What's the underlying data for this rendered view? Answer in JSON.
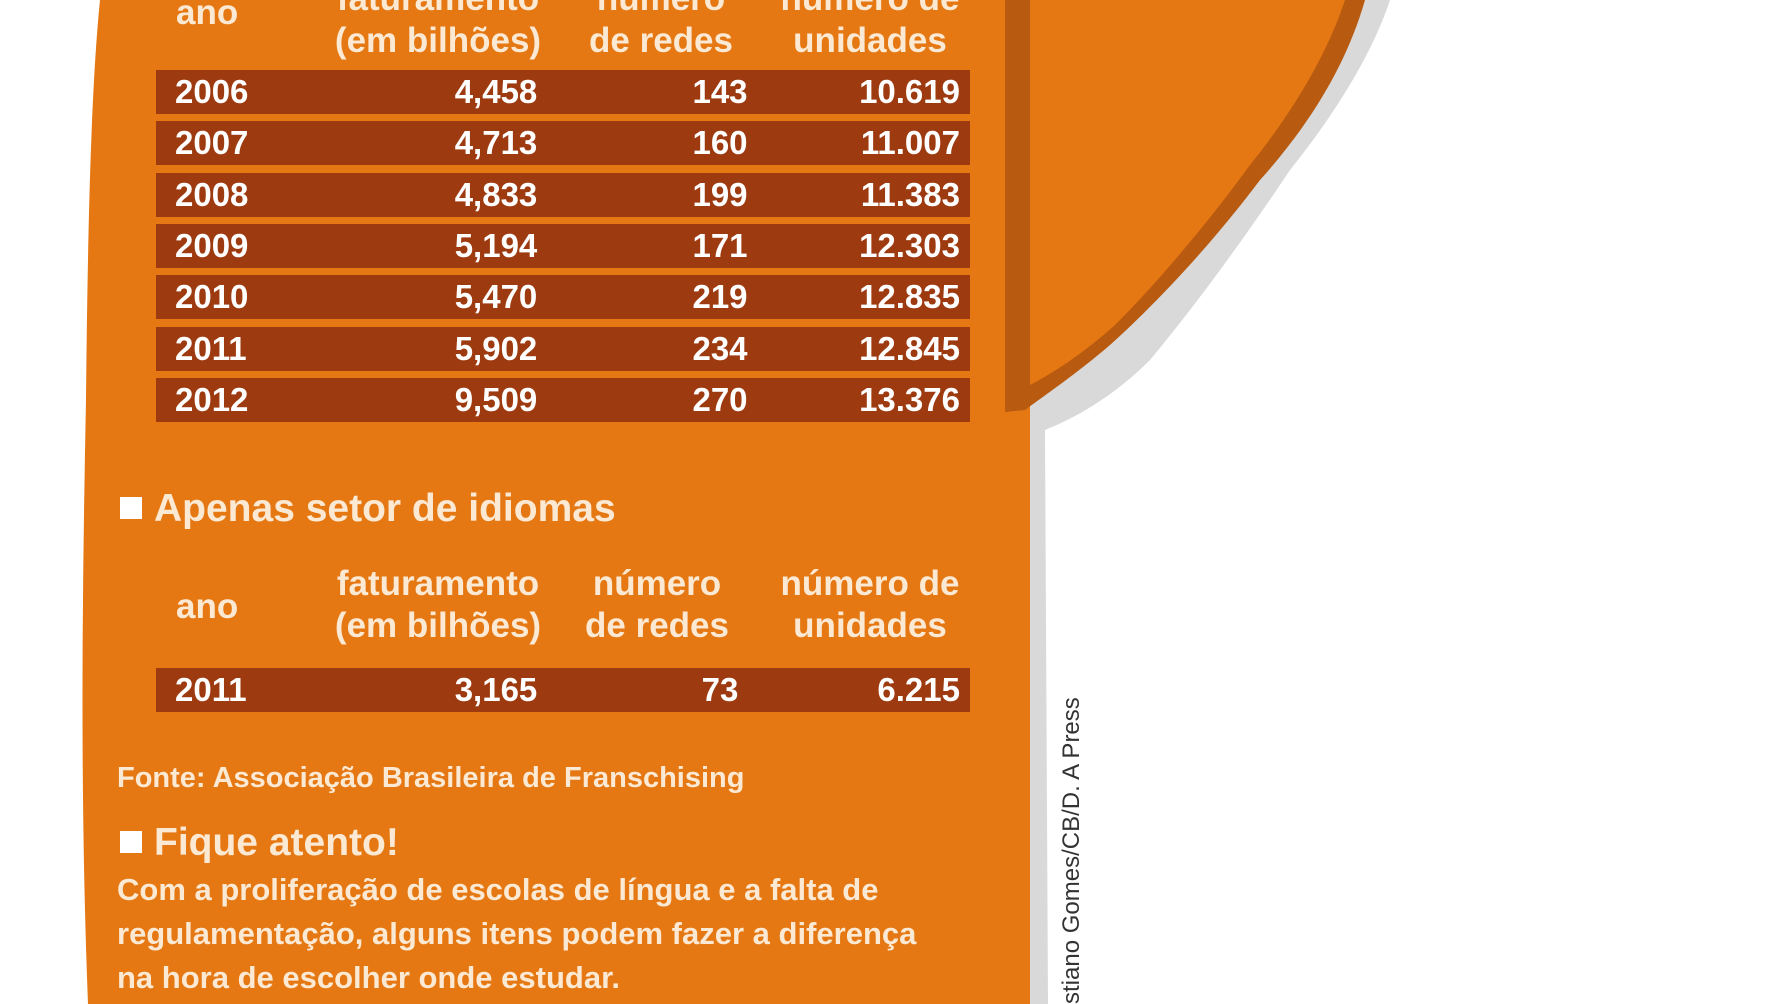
{
  "colors": {
    "panel": "#e57812",
    "panel_dark": "#b85a10",
    "row": "#9e3a0f",
    "header_text": "#fbe9d4",
    "row_text": "#ffffff"
  },
  "table_all": {
    "headers": {
      "ano": "ano",
      "faturamento": [
        "faturamento",
        "(em bilhões)"
      ],
      "redes": [
        "número",
        "de redes"
      ],
      "unidades": [
        "número de",
        "unidades"
      ]
    },
    "rows": [
      [
        "2006",
        "4,458",
        "143",
        "10.619"
      ],
      [
        "2007",
        "4,713",
        "160",
        "11.007"
      ],
      [
        "2008",
        "4,833",
        "199",
        "11.383"
      ],
      [
        "2009",
        "5,194",
        "171",
        "12.303"
      ],
      [
        "2010",
        "5,470",
        "219",
        "12.835"
      ],
      [
        "2011",
        "5,902",
        "234",
        "12.845"
      ],
      [
        "2012",
        "9,509",
        "270",
        "13.376"
      ]
    ]
  },
  "section_idiomas": {
    "title": "Apenas setor de idiomas",
    "headers": {
      "ano": "ano",
      "faturamento": [
        "faturamento",
        "(em bilhões)"
      ],
      "redes": [
        "número",
        "de redes"
      ],
      "unidades": [
        "número de",
        "unidades"
      ]
    },
    "rows": [
      [
        "2011",
        "3,165",
        "73",
        "6.215"
      ]
    ]
  },
  "source": "Fonte: Associação Brasileira de Franschising",
  "tip": {
    "title": "Fique atento!",
    "lines": [
      "Com a proliferação de escolas de língua e a falta de",
      "regulamentação, alguns itens podem fazer a diferença",
      "na hora de escolher onde estudar."
    ]
  },
  "credit": "stiano Gomes/CB/D. A Press",
  "chart_data": [
    {
      "type": "table",
      "columns": [
        "ano",
        "faturamento (em bilhões)",
        "número de redes",
        "número de unidades"
      ],
      "rows": [
        [
          "2006",
          4.458,
          143,
          10619
        ],
        [
          "2007",
          4.713,
          160,
          11007
        ],
        [
          "2008",
          4.833,
          199,
          11383
        ],
        [
          "2009",
          5.194,
          171,
          12303
        ],
        [
          "2010",
          5.47,
          219,
          12835
        ],
        [
          "2011",
          5.902,
          234,
          12845
        ],
        [
          "2012",
          9.509,
          270,
          13376
        ]
      ]
    },
    {
      "type": "table",
      "title": "Apenas setor de idiomas",
      "columns": [
        "ano",
        "faturamento (em bilhões)",
        "número de redes",
        "número de unidades"
      ],
      "rows": [
        [
          "2011",
          3.165,
          73,
          6215
        ]
      ]
    }
  ]
}
